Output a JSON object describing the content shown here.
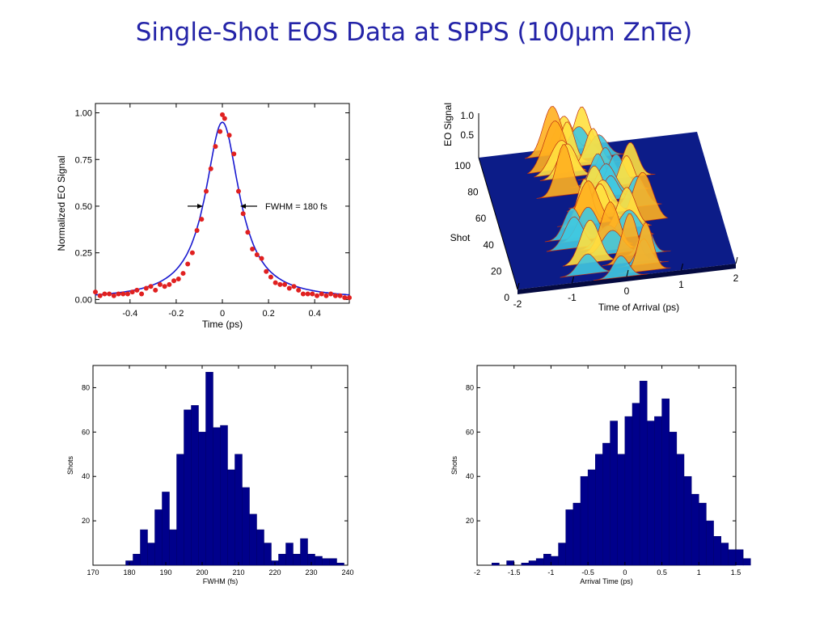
{
  "slide_title": "Single-Shot EOS Data at SPPS (100µm ZnTe)",
  "chart_data": [
    {
      "type": "scatter",
      "xlabel": "Time (ps)",
      "ylabel": "Normalized EO Signal",
      "xlim": [
        -0.55,
        0.55
      ],
      "ylim": [
        -0.02,
        1.05
      ],
      "xticks": [
        "-0.4",
        "-0.2",
        "0",
        "0.2",
        "0.4"
      ],
      "yticks": [
        "0.00",
        "0.25",
        "0.50",
        "0.75",
        "1.00"
      ],
      "annotation": "FWHM = 180 fs",
      "series": [
        {
          "color": "#e02020",
          "x": [
            -0.55,
            -0.53,
            -0.51,
            -0.49,
            -0.47,
            -0.45,
            -0.43,
            -0.41,
            -0.39,
            -0.37,
            -0.35,
            -0.33,
            -0.31,
            -0.29,
            -0.27,
            -0.25,
            -0.23,
            -0.21,
            -0.19,
            -0.17,
            -0.15,
            -0.13,
            -0.11,
            -0.09,
            -0.07,
            -0.05,
            -0.03,
            -0.01,
            0.0,
            0.01,
            0.03,
            0.05,
            0.07,
            0.09,
            0.11,
            0.13,
            0.15,
            0.17,
            0.19,
            0.21,
            0.23,
            0.25,
            0.27,
            0.29,
            0.31,
            0.33,
            0.35,
            0.37,
            0.39,
            0.41,
            0.43,
            0.45,
            0.47,
            0.49,
            0.51,
            0.53,
            0.55
          ],
          "y": [
            0.04,
            0.02,
            0.03,
            0.03,
            0.02,
            0.03,
            0.03,
            0.03,
            0.04,
            0.05,
            0.03,
            0.06,
            0.07,
            0.05,
            0.08,
            0.07,
            0.08,
            0.1,
            0.11,
            0.14,
            0.19,
            0.25,
            0.37,
            0.43,
            0.58,
            0.7,
            0.82,
            0.9,
            0.99,
            0.97,
            0.88,
            0.78,
            0.58,
            0.46,
            0.36,
            0.27,
            0.24,
            0.22,
            0.15,
            0.12,
            0.09,
            0.08,
            0.08,
            0.06,
            0.07,
            0.05,
            0.03,
            0.03,
            0.03,
            0.02,
            0.03,
            0.02,
            0.03,
            0.02,
            0.02,
            0.01,
            0.01
          ]
        },
        {
          "color": "#1a1ad0",
          "fit": "lorentzian",
          "peak": 0.95,
          "fwhm_ps": 0.18
        }
      ]
    },
    {
      "type": "surface",
      "xlabel": "Time of Arrival (ps)",
      "ylabel": "Shot",
      "zlabel": "EO Signal",
      "xticks": [
        "-2",
        "-1",
        "0",
        "1",
        "2"
      ],
      "yticks": [
        "0",
        "20",
        "40",
        "60",
        "80",
        "100"
      ],
      "zticks": [
        "0.5",
        "1.0"
      ]
    },
    {
      "type": "bar",
      "xlabel": "FWHM (fs)",
      "ylabel": "Shots",
      "xlim": [
        170,
        240
      ],
      "ylim": [
        0,
        90
      ],
      "xticks": [
        "170",
        "180",
        "190",
        "200",
        "210",
        "220",
        "230",
        "240"
      ],
      "yticks": [
        "20",
        "40",
        "60",
        "80"
      ],
      "bin_width": 2,
      "bin_start": 179,
      "values": [
        2,
        5,
        16,
        10,
        25,
        33,
        16,
        50,
        70,
        72,
        60,
        87,
        62,
        63,
        43,
        50,
        35,
        23,
        16,
        10,
        2,
        5,
        10,
        5,
        12,
        5,
        4,
        3,
        3,
        1
      ],
      "color": "#00008b"
    },
    {
      "type": "bar",
      "xlabel": "Arrival Time (ps)",
      "ylabel": "Shots",
      "xlim": [
        -2,
        1.5
      ],
      "ylim": [
        0,
        90
      ],
      "xticks": [
        "-2",
        "-1.5",
        "-1",
        "-0.5",
        "0",
        "0.5",
        "1",
        "1.5"
      ],
      "yticks": [
        "20",
        "40",
        "60",
        "80"
      ],
      "bin_width": 0.1,
      "bin_start": -1.8,
      "values": [
        1,
        0,
        2,
        0,
        1,
        2,
        3,
        5,
        4,
        10,
        25,
        28,
        40,
        43,
        50,
        55,
        65,
        50,
        67,
        73,
        83,
        65,
        67,
        75,
        60,
        50,
        40,
        32,
        28,
        20,
        13,
        10,
        7,
        7,
        3
      ],
      "color": "#00008b"
    }
  ]
}
